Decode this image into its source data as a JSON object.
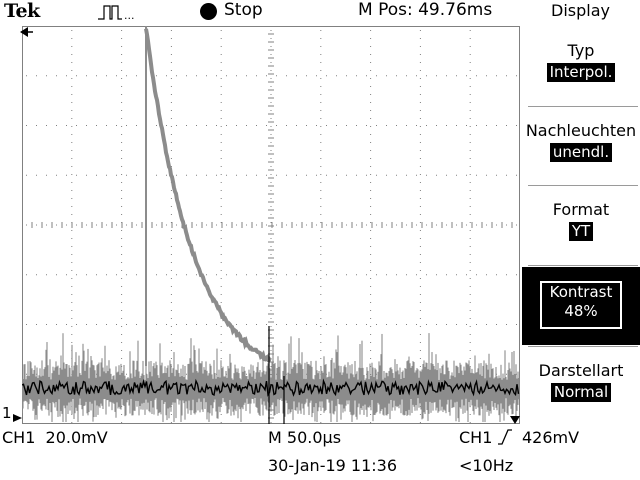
{
  "header": {
    "brand": "Tek",
    "trigger_icon": "pulse-trigger-icon",
    "run_state": "Stop",
    "horizontal_position": "M Pos: 49.76ms",
    "menu_title": "Display"
  },
  "menu": {
    "items": [
      {
        "label": "Typ",
        "value": "Interpol."
      },
      {
        "label": "Nachleuchten",
        "value": "unendl."
      },
      {
        "label": "Format",
        "value": "YT"
      },
      {
        "label": "Kontrast",
        "value": "48%"
      },
      {
        "label": "Darstellart",
        "value": "Normal"
      }
    ]
  },
  "footer": {
    "ch1_scale": "CH1  20.0mV",
    "timebase": "M 50.0µs",
    "trigger_source": "CH1",
    "trigger_level": "426mV",
    "trigger_slope_icon": "rising-edge-icon",
    "date_time": "30-Jan-19 11:36",
    "trigger_freq": "<10Hz"
  },
  "markers": {
    "channel_ground": "1",
    "trigger_pos_icon": "trigger-position-arrow-icon",
    "trigger_level_icon": "trigger-level-arrow-icon"
  },
  "colors": {
    "trace_live": "#000000",
    "trace_persist": "#8c8c8c",
    "grid": "#808080",
    "background": "#ffffff"
  }
}
